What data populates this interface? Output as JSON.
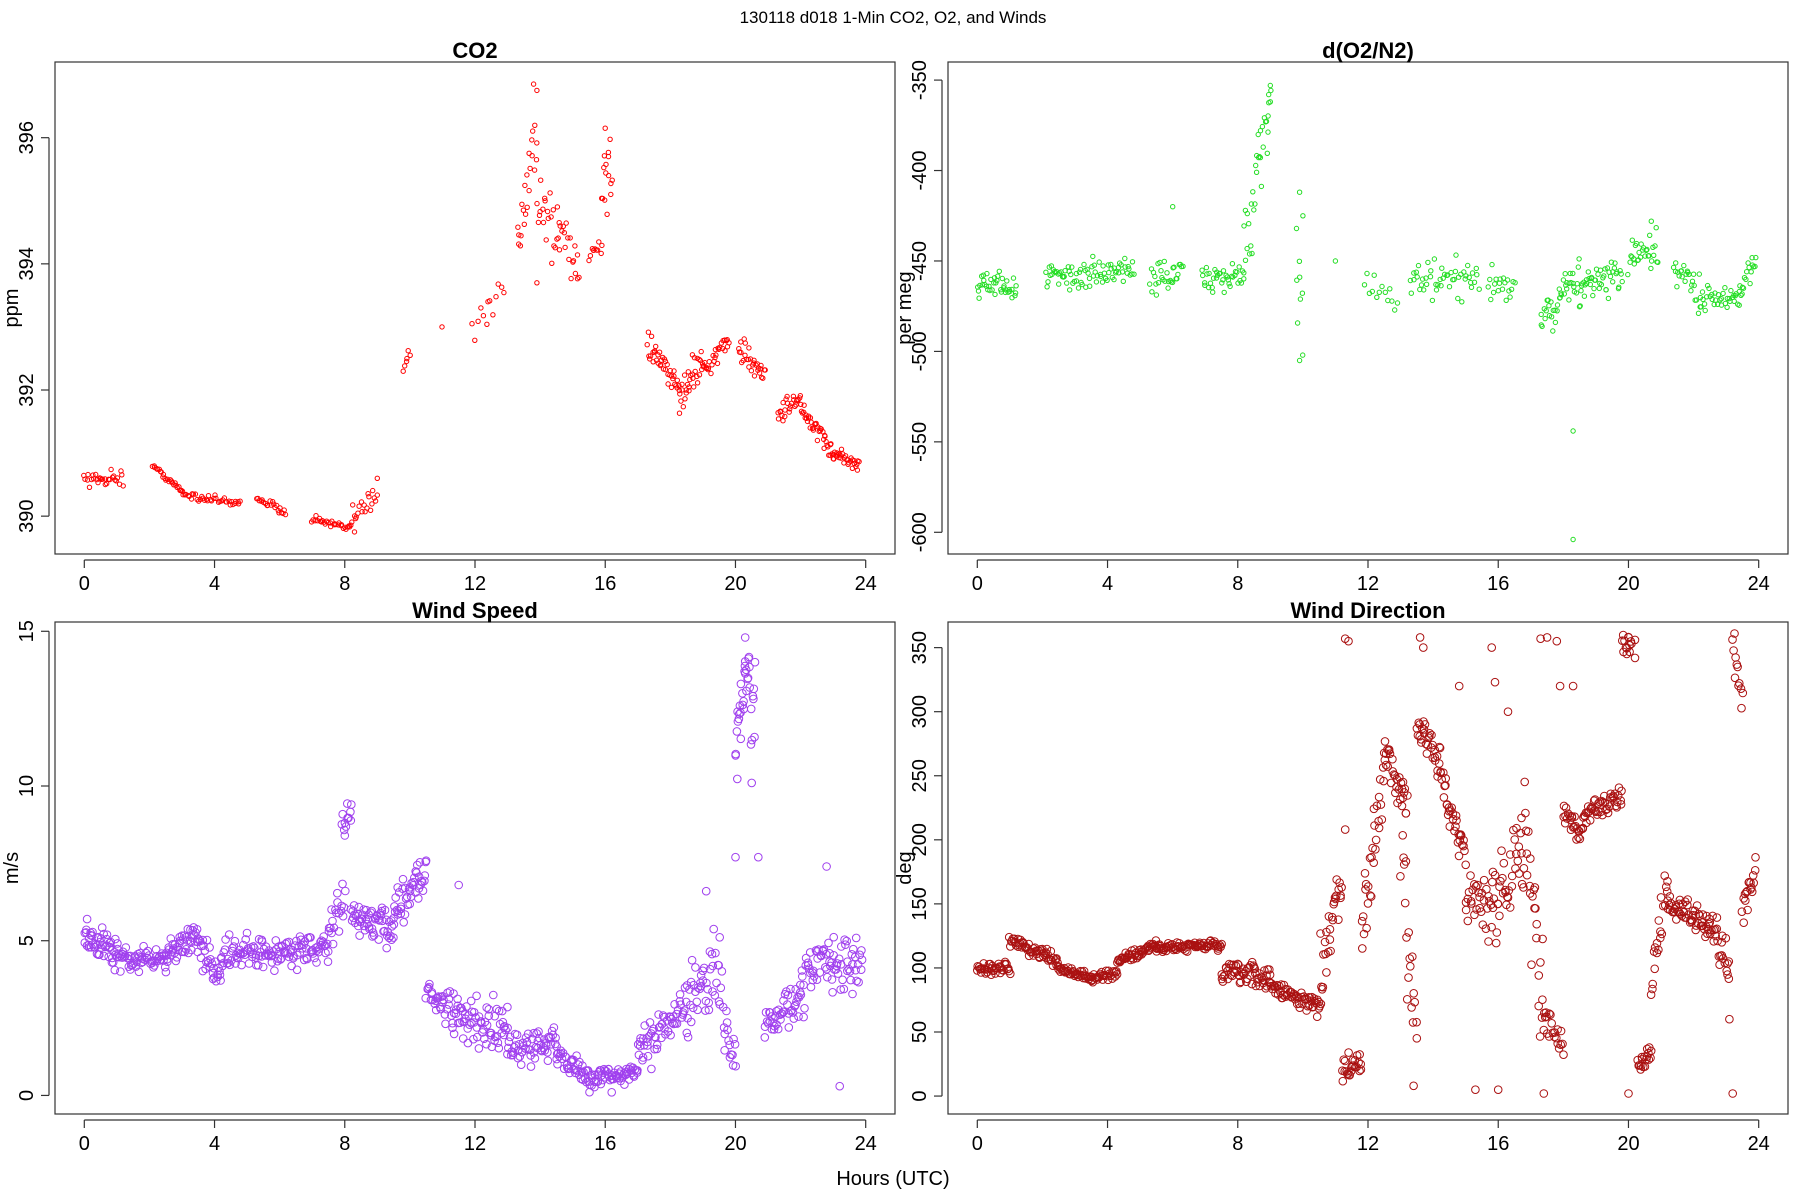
{
  "figure": {
    "title": "130118   d018   1-Min CO2, O2, and Winds",
    "xlabel": "Hours (UTC)"
  },
  "chart_data": [
    {
      "id": "co2",
      "type": "scatter",
      "title": "CO2",
      "xlabel": "",
      "ylabel": "ppm",
      "xlim": [
        -0.9,
        24.9
      ],
      "ylim": [
        389.4,
        397.2
      ],
      "xticks": [
        0,
        4,
        8,
        12,
        16,
        20,
        24
      ],
      "yticks": [
        390,
        392,
        394,
        396
      ],
      "color": "#ff0000",
      "marker_size": "small",
      "segments": [
        {
          "x0": 0.0,
          "x1": 1.2,
          "y0": 390.6,
          "y1": 390.6,
          "n": 30,
          "noise": 0.12
        },
        {
          "x0": 2.1,
          "x1": 3.0,
          "y0": 390.8,
          "y1": 390.4,
          "n": 25,
          "noise": 0.04
        },
        {
          "x0": 3.0,
          "x1": 4.8,
          "y0": 390.35,
          "y1": 390.2,
          "n": 40,
          "noise": 0.05
        },
        {
          "x0": 5.3,
          "x1": 6.2,
          "y0": 390.3,
          "y1": 390.05,
          "n": 22,
          "noise": 0.06
        },
        {
          "x0": 7.0,
          "x1": 8.2,
          "y0": 389.95,
          "y1": 389.8,
          "n": 30,
          "noise": 0.05
        },
        {
          "x0": 8.2,
          "x1": 9.0,
          "y0": 389.9,
          "y1": 390.4,
          "n": 20,
          "noise": 0.2
        },
        {
          "x0": 9.8,
          "x1": 10.0,
          "y0": 392.4,
          "y1": 392.6,
          "n": 6,
          "noise": 0.1
        },
        {
          "x0": 11.0,
          "x1": 11.0,
          "y0": 393.0,
          "y1": 393.0,
          "n": 1,
          "noise": 0.0
        },
        {
          "x0": 11.9,
          "x1": 12.9,
          "y0": 393.0,
          "y1": 393.7,
          "n": 12,
          "noise": 0.25
        },
        {
          "x0": 13.3,
          "x1": 13.9,
          "y0": 394.2,
          "y1": 396.2,
          "n": 22,
          "noise": 0.6
        },
        {
          "x0": 13.9,
          "x1": 14.6,
          "y0": 395.2,
          "y1": 394.3,
          "n": 22,
          "noise": 0.5
        },
        {
          "x0": 14.6,
          "x1": 15.2,
          "y0": 394.6,
          "y1": 394.0,
          "n": 18,
          "noise": 0.35
        },
        {
          "x0": 15.5,
          "x1": 15.9,
          "y0": 394.1,
          "y1": 394.3,
          "n": 10,
          "noise": 0.1
        },
        {
          "x0": 15.9,
          "x1": 16.2,
          "y0": 394.9,
          "y1": 395.6,
          "n": 14,
          "noise": 0.4
        },
        {
          "x0": 17.3,
          "x1": 18.3,
          "y0": 392.7,
          "y1": 392.0,
          "n": 40,
          "noise": 0.18
        },
        {
          "x0": 18.3,
          "x1": 19.0,
          "y0": 391.9,
          "y1": 392.5,
          "n": 30,
          "noise": 0.25
        },
        {
          "x0": 19.0,
          "x1": 19.8,
          "y0": 392.3,
          "y1": 392.8,
          "n": 28,
          "noise": 0.15
        },
        {
          "x0": 20.1,
          "x1": 20.9,
          "y0": 392.6,
          "y1": 392.3,
          "n": 30,
          "noise": 0.2
        },
        {
          "x0": 21.3,
          "x1": 22.0,
          "y0": 391.6,
          "y1": 391.9,
          "n": 25,
          "noise": 0.15
        },
        {
          "x0": 22.0,
          "x1": 23.0,
          "y0": 391.7,
          "y1": 391.0,
          "n": 40,
          "noise": 0.12
        },
        {
          "x0": 23.0,
          "x1": 23.8,
          "y0": 391.0,
          "y1": 390.8,
          "n": 30,
          "noise": 0.08
        }
      ],
      "outliers": [
        {
          "x": 13.8,
          "y": 396.85
        },
        {
          "x": 13.9,
          "y": 396.75
        },
        {
          "x": 13.9,
          "y": 393.7
        },
        {
          "x": 16.0,
          "y": 396.15
        },
        {
          "x": 16.1,
          "y": 395.7
        },
        {
          "x": 12.4,
          "y": 393.4
        },
        {
          "x": 8.3,
          "y": 389.75
        },
        {
          "x": 9.0,
          "y": 390.6
        }
      ]
    },
    {
      "id": "o2n2",
      "type": "scatter",
      "title": "d(O2/N2)",
      "xlabel": "",
      "ylabel": "per meg",
      "xlim": [
        -0.9,
        24.9
      ],
      "ylim": [
        -612,
        -340
      ],
      "xticks": [
        0,
        4,
        8,
        12,
        16,
        20,
        24
      ],
      "yticks": [
        -350,
        -400,
        -450,
        -500,
        -550,
        -600
      ],
      "color": "#22dd22",
      "marker_size": "small",
      "segments": [
        {
          "x0": 0.0,
          "x1": 1.2,
          "y0": -462,
          "y1": -465,
          "n": 40,
          "noise": 6
        },
        {
          "x0": 2.1,
          "x1": 4.8,
          "y0": -460,
          "y1": -455,
          "n": 80,
          "noise": 7
        },
        {
          "x0": 5.3,
          "x1": 6.3,
          "y0": -458,
          "y1": -458,
          "n": 30,
          "noise": 8
        },
        {
          "x0": 6.9,
          "x1": 8.2,
          "y0": -460,
          "y1": -458,
          "n": 40,
          "noise": 6
        },
        {
          "x0": 8.2,
          "x1": 8.7,
          "y0": -450,
          "y1": -390,
          "n": 20,
          "noise": 22
        },
        {
          "x0": 8.7,
          "x1": 9.0,
          "y0": -400,
          "y1": -370,
          "n": 12,
          "noise": 20
        },
        {
          "x0": 9.8,
          "x1": 10.0,
          "y0": -440,
          "y1": -480,
          "n": 8,
          "noise": 28
        },
        {
          "x0": 11.9,
          "x1": 12.9,
          "y0": -460,
          "y1": -470,
          "n": 14,
          "noise": 10
        },
        {
          "x0": 13.3,
          "x1": 15.4,
          "y0": -462,
          "y1": -462,
          "n": 50,
          "noise": 10
        },
        {
          "x0": 15.7,
          "x1": 16.5,
          "y0": -462,
          "y1": -465,
          "n": 20,
          "noise": 8
        },
        {
          "x0": 17.3,
          "x1": 17.9,
          "y0": -482,
          "y1": -475,
          "n": 20,
          "noise": 9
        },
        {
          "x0": 17.9,
          "x1": 18.5,
          "y0": -470,
          "y1": -458,
          "n": 22,
          "noise": 12
        },
        {
          "x0": 18.5,
          "x1": 19.8,
          "y0": -465,
          "y1": -458,
          "n": 45,
          "noise": 9
        },
        {
          "x0": 20.0,
          "x1": 20.9,
          "y0": -450,
          "y1": -445,
          "n": 30,
          "noise": 10
        },
        {
          "x0": 21.4,
          "x1": 22.2,
          "y0": -455,
          "y1": -468,
          "n": 25,
          "noise": 8
        },
        {
          "x0": 22.2,
          "x1": 23.4,
          "y0": -470,
          "y1": -470,
          "n": 35,
          "noise": 7
        },
        {
          "x0": 23.4,
          "x1": 23.9,
          "y0": -465,
          "y1": -450,
          "n": 18,
          "noise": 8
        }
      ],
      "outliers": [
        {
          "x": 9.0,
          "y": -353
        },
        {
          "x": 8.95,
          "y": -358
        },
        {
          "x": 9.0,
          "y": -362
        },
        {
          "x": 6.0,
          "y": -420
        },
        {
          "x": 9.9,
          "y": -412
        },
        {
          "x": 9.9,
          "y": -505
        },
        {
          "x": 10.0,
          "y": -425
        },
        {
          "x": 11.0,
          "y": -450
        },
        {
          "x": 18.3,
          "y": -544
        },
        {
          "x": 18.3,
          "y": -604
        },
        {
          "x": 20.7,
          "y": -428
        }
      ]
    },
    {
      "id": "wspd",
      "type": "scatter",
      "title": "Wind Speed",
      "xlabel": "",
      "ylabel": "m/s",
      "xlim": [
        -0.9,
        24.9
      ],
      "ylim": [
        -0.6,
        15.3
      ],
      "xticks": [
        0,
        4,
        8,
        12,
        16,
        20,
        24
      ],
      "yticks": [
        0,
        5,
        10,
        15
      ],
      "color": "#a040ee",
      "marker_size": "large",
      "segments": [
        {
          "x0": 0.0,
          "x1": 1.0,
          "y0": 5.2,
          "y1": 4.6,
          "n": 50,
          "noise": 0.45
        },
        {
          "x0": 1.0,
          "x1": 2.5,
          "y0": 4.4,
          "y1": 4.4,
          "n": 60,
          "noise": 0.35
        },
        {
          "x0": 2.5,
          "x1": 3.5,
          "y0": 4.6,
          "y1": 5.2,
          "n": 45,
          "noise": 0.35
        },
        {
          "x0": 3.5,
          "x1": 4.2,
          "y0": 4.8,
          "y1": 3.8,
          "n": 30,
          "noise": 0.4
        },
        {
          "x0": 4.2,
          "x1": 7.5,
          "y0": 4.5,
          "y1": 4.8,
          "n": 130,
          "noise": 0.45
        },
        {
          "x0": 7.5,
          "x1": 8.0,
          "y0": 5.0,
          "y1": 6.5,
          "n": 20,
          "noise": 0.8
        },
        {
          "x0": 7.9,
          "x1": 8.2,
          "y0": 8.8,
          "y1": 9.2,
          "n": 10,
          "noise": 0.3
        },
        {
          "x0": 8.2,
          "x1": 9.5,
          "y0": 5.8,
          "y1": 5.4,
          "n": 60,
          "noise": 0.5
        },
        {
          "x0": 9.5,
          "x1": 10.5,
          "y0": 6.0,
          "y1": 7.3,
          "n": 45,
          "noise": 0.55
        },
        {
          "x0": 10.5,
          "x1": 11.3,
          "y0": 3.3,
          "y1": 2.8,
          "n": 30,
          "noise": 0.5
        },
        {
          "x0": 11.3,
          "x1": 13.0,
          "y0": 2.6,
          "y1": 2.2,
          "n": 70,
          "noise": 0.65
        },
        {
          "x0": 13.0,
          "x1": 14.5,
          "y0": 1.4,
          "y1": 1.8,
          "n": 60,
          "noise": 0.5
        },
        {
          "x0": 14.5,
          "x1": 15.5,
          "y0": 1.3,
          "y1": 0.6,
          "n": 40,
          "noise": 0.35
        },
        {
          "x0": 15.5,
          "x1": 17.0,
          "y0": 0.5,
          "y1": 0.8,
          "n": 60,
          "noise": 0.25
        },
        {
          "x0": 17.0,
          "x1": 18.5,
          "y0": 1.2,
          "y1": 3.2,
          "n": 60,
          "noise": 0.6
        },
        {
          "x0": 18.5,
          "x1": 19.5,
          "y0": 2.5,
          "y1": 4.5,
          "n": 40,
          "noise": 1.0
        },
        {
          "x0": 19.5,
          "x1": 20.0,
          "y0": 3.0,
          "y1": 1.5,
          "n": 20,
          "noise": 1.0
        },
        {
          "x0": 20.0,
          "x1": 20.4,
          "y0": 11.5,
          "y1": 13.8,
          "n": 25,
          "noise": 1.0
        },
        {
          "x0": 20.4,
          "x1": 20.6,
          "y0": 13.2,
          "y1": 12.0,
          "n": 10,
          "noise": 1.2
        },
        {
          "x0": 20.9,
          "x1": 22.0,
          "y0": 2.2,
          "y1": 3.2,
          "n": 45,
          "noise": 0.5
        },
        {
          "x0": 22.0,
          "x1": 23.0,
          "y0": 3.6,
          "y1": 4.6,
          "n": 40,
          "noise": 0.8
        },
        {
          "x0": 23.0,
          "x1": 23.9,
          "y0": 4.0,
          "y1": 4.3,
          "n": 35,
          "noise": 1.0
        }
      ],
      "outliers": [
        {
          "x": 20.3,
          "y": 14.8
        },
        {
          "x": 20.0,
          "y": 7.7
        },
        {
          "x": 20.5,
          "y": 10.1
        },
        {
          "x": 20.7,
          "y": 7.7
        },
        {
          "x": 23.2,
          "y": 0.3
        },
        {
          "x": 22.8,
          "y": 7.4
        },
        {
          "x": 11.5,
          "y": 6.8
        },
        {
          "x": 19.1,
          "y": 6.6
        },
        {
          "x": 8.2,
          "y": 9.4
        },
        {
          "x": 8.0,
          "y": 8.4
        },
        {
          "x": 20.6,
          "y": 14.0
        },
        {
          "x": 16.2,
          "y": 0.1
        }
      ]
    },
    {
      "id": "wdir",
      "type": "scatter",
      "title": "Wind Direction",
      "xlabel": "",
      "ylabel": "deg",
      "xlim": [
        -0.9,
        24.9
      ],
      "ylim": [
        -14,
        370
      ],
      "xticks": [
        0,
        4,
        8,
        12,
        16,
        20,
        24
      ],
      "yticks": [
        0,
        50,
        100,
        150,
        200,
        250,
        300,
        350
      ],
      "color": "#aa1111",
      "marker_size": "large",
      "segments": [
        {
          "x0": 0.0,
          "x1": 1.0,
          "y0": 100,
          "y1": 100,
          "n": 40,
          "noise": 4
        },
        {
          "x0": 1.0,
          "x1": 2.5,
          "y0": 122,
          "y1": 105,
          "n": 60,
          "noise": 4
        },
        {
          "x0": 2.5,
          "x1": 3.5,
          "y0": 100,
          "y1": 92,
          "n": 40,
          "noise": 3
        },
        {
          "x0": 3.5,
          "x1": 4.3,
          "y0": 92,
          "y1": 96,
          "n": 30,
          "noise": 3
        },
        {
          "x0": 4.3,
          "x1": 5.5,
          "y0": 105,
          "y1": 118,
          "n": 50,
          "noise": 4
        },
        {
          "x0": 5.5,
          "x1": 7.5,
          "y0": 116,
          "y1": 118,
          "n": 80,
          "noise": 3
        },
        {
          "x0": 7.5,
          "x1": 9.0,
          "y0": 95,
          "y1": 92,
          "n": 60,
          "noise": 8
        },
        {
          "x0": 9.0,
          "x1": 10.5,
          "y0": 85,
          "y1": 70,
          "n": 60,
          "noise": 6
        },
        {
          "x0": 10.5,
          "x1": 11.2,
          "y0": 90,
          "y1": 170,
          "n": 30,
          "noise": 25
        },
        {
          "x0": 11.2,
          "x1": 11.8,
          "y0": 20,
          "y1": 30,
          "n": 25,
          "noise": 10
        },
        {
          "x0": 11.8,
          "x1": 12.5,
          "y0": 120,
          "y1": 250,
          "n": 30,
          "noise": 30
        },
        {
          "x0": 12.5,
          "x1": 13.2,
          "y0": 270,
          "y1": 230,
          "n": 30,
          "noise": 15
        },
        {
          "x0": 13.0,
          "x1": 13.5,
          "y0": 200,
          "y1": 30,
          "n": 20,
          "noise": 40
        },
        {
          "x0": 13.5,
          "x1": 14.2,
          "y0": 295,
          "y1": 260,
          "n": 30,
          "noise": 10
        },
        {
          "x0": 14.2,
          "x1": 15.0,
          "y0": 250,
          "y1": 190,
          "n": 35,
          "noise": 12
        },
        {
          "x0": 15.0,
          "x1": 15.8,
          "y0": 160,
          "y1": 140,
          "n": 30,
          "noise": 20
        },
        {
          "x0": 15.8,
          "x1": 16.8,
          "y0": 150,
          "y1": 200,
          "n": 40,
          "noise": 30
        },
        {
          "x0": 16.8,
          "x1": 17.4,
          "y0": 220,
          "y1": 60,
          "n": 25,
          "noise": 35
        },
        {
          "x0": 17.4,
          "x1": 18.0,
          "y0": 60,
          "y1": 40,
          "n": 20,
          "noise": 10
        },
        {
          "x0": 18.0,
          "x1": 18.6,
          "y0": 220,
          "y1": 205,
          "n": 25,
          "noise": 8
        },
        {
          "x0": 18.6,
          "x1": 19.8,
          "y0": 220,
          "y1": 235,
          "n": 45,
          "noise": 8
        },
        {
          "x0": 19.8,
          "x1": 20.1,
          "y0": 355,
          "y1": 350,
          "n": 12,
          "noise": 6
        },
        {
          "x0": 20.3,
          "x1": 20.7,
          "y0": 25,
          "y1": 35,
          "n": 18,
          "noise": 6
        },
        {
          "x0": 20.7,
          "x1": 21.2,
          "y0": 90,
          "y1": 165,
          "n": 20,
          "noise": 20
        },
        {
          "x0": 21.2,
          "x1": 22.5,
          "y0": 150,
          "y1": 130,
          "n": 55,
          "noise": 10
        },
        {
          "x0": 22.5,
          "x1": 23.1,
          "y0": 135,
          "y1": 100,
          "n": 25,
          "noise": 15
        },
        {
          "x0": 23.2,
          "x1": 23.5,
          "y0": 350,
          "y1": 310,
          "n": 12,
          "noise": 15
        },
        {
          "x0": 23.5,
          "x1": 23.9,
          "y0": 145,
          "y1": 175,
          "n": 18,
          "noise": 10
        }
      ],
      "outliers": [
        {
          "x": 11.3,
          "y": 357
        },
        {
          "x": 11.4,
          "y": 355
        },
        {
          "x": 11.3,
          "y": 208
        },
        {
          "x": 13.6,
          "y": 358
        },
        {
          "x": 13.7,
          "y": 350
        },
        {
          "x": 13.4,
          "y": 8
        },
        {
          "x": 15.8,
          "y": 350
        },
        {
          "x": 15.9,
          "y": 323
        },
        {
          "x": 16.0,
          "y": 5
        },
        {
          "x": 16.3,
          "y": 300
        },
        {
          "x": 17.3,
          "y": 357
        },
        {
          "x": 17.5,
          "y": 358
        },
        {
          "x": 17.8,
          "y": 355
        },
        {
          "x": 17.4,
          "y": 2
        },
        {
          "x": 17.9,
          "y": 320
        },
        {
          "x": 20.0,
          "y": 358
        },
        {
          "x": 20.2,
          "y": 356
        },
        {
          "x": 20.0,
          "y": 2
        },
        {
          "x": 23.2,
          "y": 2
        },
        {
          "x": 23.1,
          "y": 60
        },
        {
          "x": 15.3,
          "y": 5
        },
        {
          "x": 14.8,
          "y": 320
        },
        {
          "x": 18.3,
          "y": 320
        },
        {
          "x": 20.2,
          "y": 342
        }
      ]
    }
  ]
}
